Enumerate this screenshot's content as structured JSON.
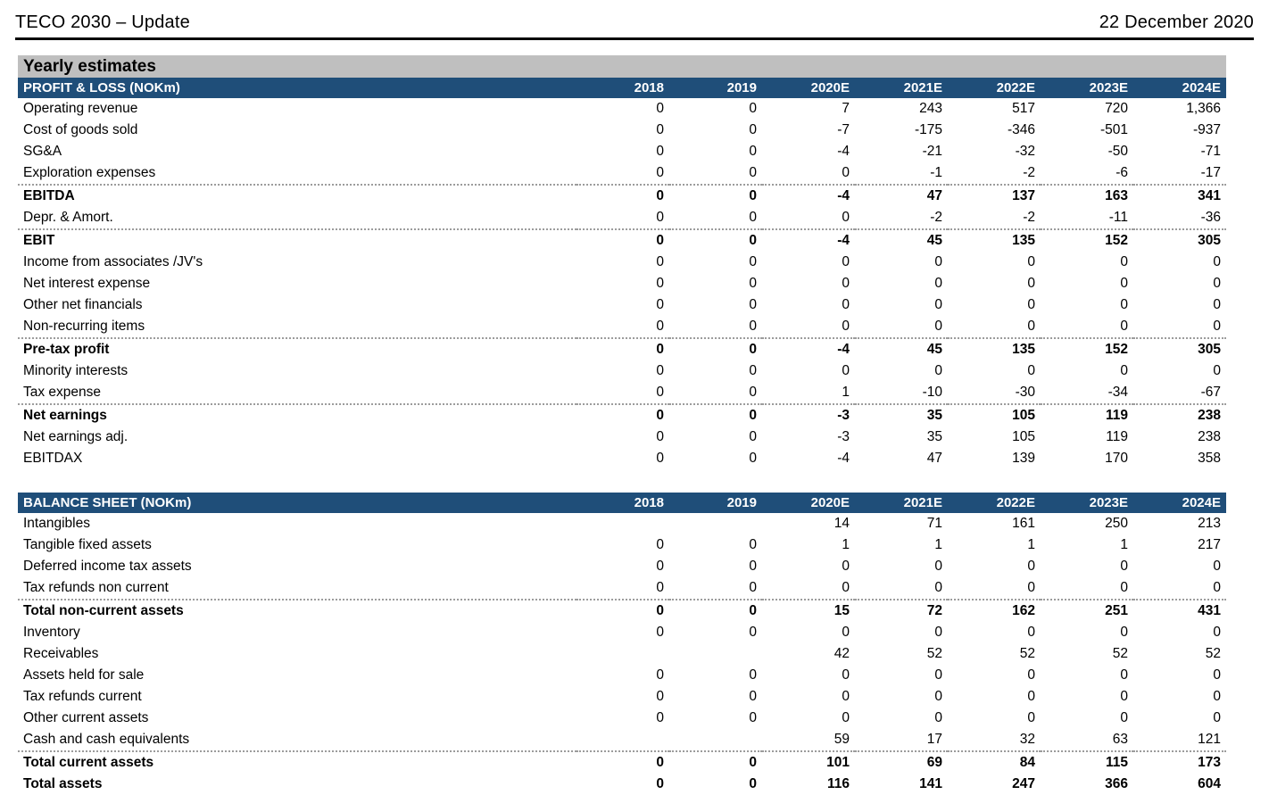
{
  "header": {
    "title": "TECO 2030 – Update",
    "date": "22 December 2020"
  },
  "section_title": "Yearly estimates",
  "colors": {
    "header_blue": "#1F4E79",
    "band_gray": "#BFBFBF",
    "rule_black": "#000000",
    "dotted_separator_gray": "#9C9C9C"
  },
  "tables": [
    {
      "title": "PROFIT & LOSS (NOKm)",
      "columns": [
        "2018",
        "2019",
        "2020E",
        "2021E",
        "2022E",
        "2023E",
        "2024E"
      ],
      "rows": [
        {
          "label": "Operating revenue",
          "values": [
            "0",
            "0",
            "7",
            "243",
            "517",
            "720",
            "1,366"
          ],
          "bold": false,
          "sep": false
        },
        {
          "label": "Cost of goods sold",
          "values": [
            "0",
            "0",
            "-7",
            "-175",
            "-346",
            "-501",
            "-937"
          ],
          "bold": false,
          "sep": false
        },
        {
          "label": "SG&A",
          "values": [
            "0",
            "0",
            "-4",
            "-21",
            "-32",
            "-50",
            "-71"
          ],
          "bold": false,
          "sep": false
        },
        {
          "label": "Exploration expenses",
          "values": [
            "0",
            "0",
            "0",
            "-1",
            "-2",
            "-6",
            "-17"
          ],
          "bold": false,
          "sep": false
        },
        {
          "label": "EBITDA",
          "values": [
            "0",
            "0",
            "-4",
            "47",
            "137",
            "163",
            "341"
          ],
          "bold": true,
          "sep": true
        },
        {
          "label": "Depr. & Amort.",
          "values": [
            "0",
            "0",
            "0",
            "-2",
            "-2",
            "-11",
            "-36"
          ],
          "bold": false,
          "sep": false
        },
        {
          "label": "EBIT",
          "values": [
            "0",
            "0",
            "-4",
            "45",
            "135",
            "152",
            "305"
          ],
          "bold": true,
          "sep": true
        },
        {
          "label": "Income from associates /JV's",
          "values": [
            "0",
            "0",
            "0",
            "0",
            "0",
            "0",
            "0"
          ],
          "bold": false,
          "sep": false
        },
        {
          "label": "Net interest expense",
          "values": [
            "0",
            "0",
            "0",
            "0",
            "0",
            "0",
            "0"
          ],
          "bold": false,
          "sep": false
        },
        {
          "label": "Other net financials",
          "values": [
            "0",
            "0",
            "0",
            "0",
            "0",
            "0",
            "0"
          ],
          "bold": false,
          "sep": false
        },
        {
          "label": "Non-recurring items",
          "values": [
            "0",
            "0",
            "0",
            "0",
            "0",
            "0",
            "0"
          ],
          "bold": false,
          "sep": false
        },
        {
          "label": "Pre-tax profit",
          "values": [
            "0",
            "0",
            "-4",
            "45",
            "135",
            "152",
            "305"
          ],
          "bold": true,
          "sep": true
        },
        {
          "label": "Minority interests",
          "values": [
            "0",
            "0",
            "0",
            "0",
            "0",
            "0",
            "0"
          ],
          "bold": false,
          "sep": false
        },
        {
          "label": "Tax expense",
          "values": [
            "0",
            "0",
            "1",
            "-10",
            "-30",
            "-34",
            "-67"
          ],
          "bold": false,
          "sep": false
        },
        {
          "label": "Net earnings",
          "values": [
            "0",
            "0",
            "-3",
            "35",
            "105",
            "119",
            "238"
          ],
          "bold": true,
          "sep": true
        },
        {
          "label": "Net earnings adj.",
          "values": [
            "0",
            "0",
            "-3",
            "35",
            "105",
            "119",
            "238"
          ],
          "bold": false,
          "sep": false
        },
        {
          "label": "EBITDAX",
          "values": [
            "0",
            "0",
            "-4",
            "47",
            "139",
            "170",
            "358"
          ],
          "bold": false,
          "sep": false
        }
      ]
    },
    {
      "title": "BALANCE SHEET (NOKm)",
      "columns": [
        "2018",
        "2019",
        "2020E",
        "2021E",
        "2022E",
        "2023E",
        "2024E"
      ],
      "rows": [
        {
          "label": "Intangibles",
          "values": [
            "",
            "",
            "14",
            "71",
            "161",
            "250",
            "213"
          ],
          "bold": false,
          "sep": false
        },
        {
          "label": "Tangible fixed assets",
          "values": [
            "0",
            "0",
            "1",
            "1",
            "1",
            "1",
            "217"
          ],
          "bold": false,
          "sep": false
        },
        {
          "label": "Deferred income tax assets",
          "values": [
            "0",
            "0",
            "0",
            "0",
            "0",
            "0",
            "0"
          ],
          "bold": false,
          "sep": false
        },
        {
          "label": "Tax refunds non current",
          "values": [
            "0",
            "0",
            "0",
            "0",
            "0",
            "0",
            "0"
          ],
          "bold": false,
          "sep": false
        },
        {
          "label": "Total non-current assets",
          "values": [
            "0",
            "0",
            "15",
            "72",
            "162",
            "251",
            "431"
          ],
          "bold": true,
          "sep": true
        },
        {
          "label": "Inventory",
          "values": [
            "0",
            "0",
            "0",
            "0",
            "0",
            "0",
            "0"
          ],
          "bold": false,
          "sep": false
        },
        {
          "label": "Receivables",
          "values": [
            "",
            "",
            "42",
            "52",
            "52",
            "52",
            "52"
          ],
          "bold": false,
          "sep": false
        },
        {
          "label": "Assets held for sale",
          "values": [
            "0",
            "0",
            "0",
            "0",
            "0",
            "0",
            "0"
          ],
          "bold": false,
          "sep": false
        },
        {
          "label": "Tax refunds current",
          "values": [
            "0",
            "0",
            "0",
            "0",
            "0",
            "0",
            "0"
          ],
          "bold": false,
          "sep": false
        },
        {
          "label": "Other current assets",
          "values": [
            "0",
            "0",
            "0",
            "0",
            "0",
            "0",
            "0"
          ],
          "bold": false,
          "sep": false
        },
        {
          "label": "Cash and cash equivalents",
          "values": [
            "",
            "",
            "59",
            "17",
            "32",
            "63",
            "121"
          ],
          "bold": false,
          "sep": false
        },
        {
          "label": "Total current assets",
          "values": [
            "0",
            "0",
            "101",
            "69",
            "84",
            "115",
            "173"
          ],
          "bold": true,
          "sep": true
        },
        {
          "label": "Total assets",
          "values": [
            "0",
            "0",
            "116",
            "141",
            "247",
            "366",
            "604"
          ],
          "bold": true,
          "sep": false
        }
      ]
    }
  ]
}
